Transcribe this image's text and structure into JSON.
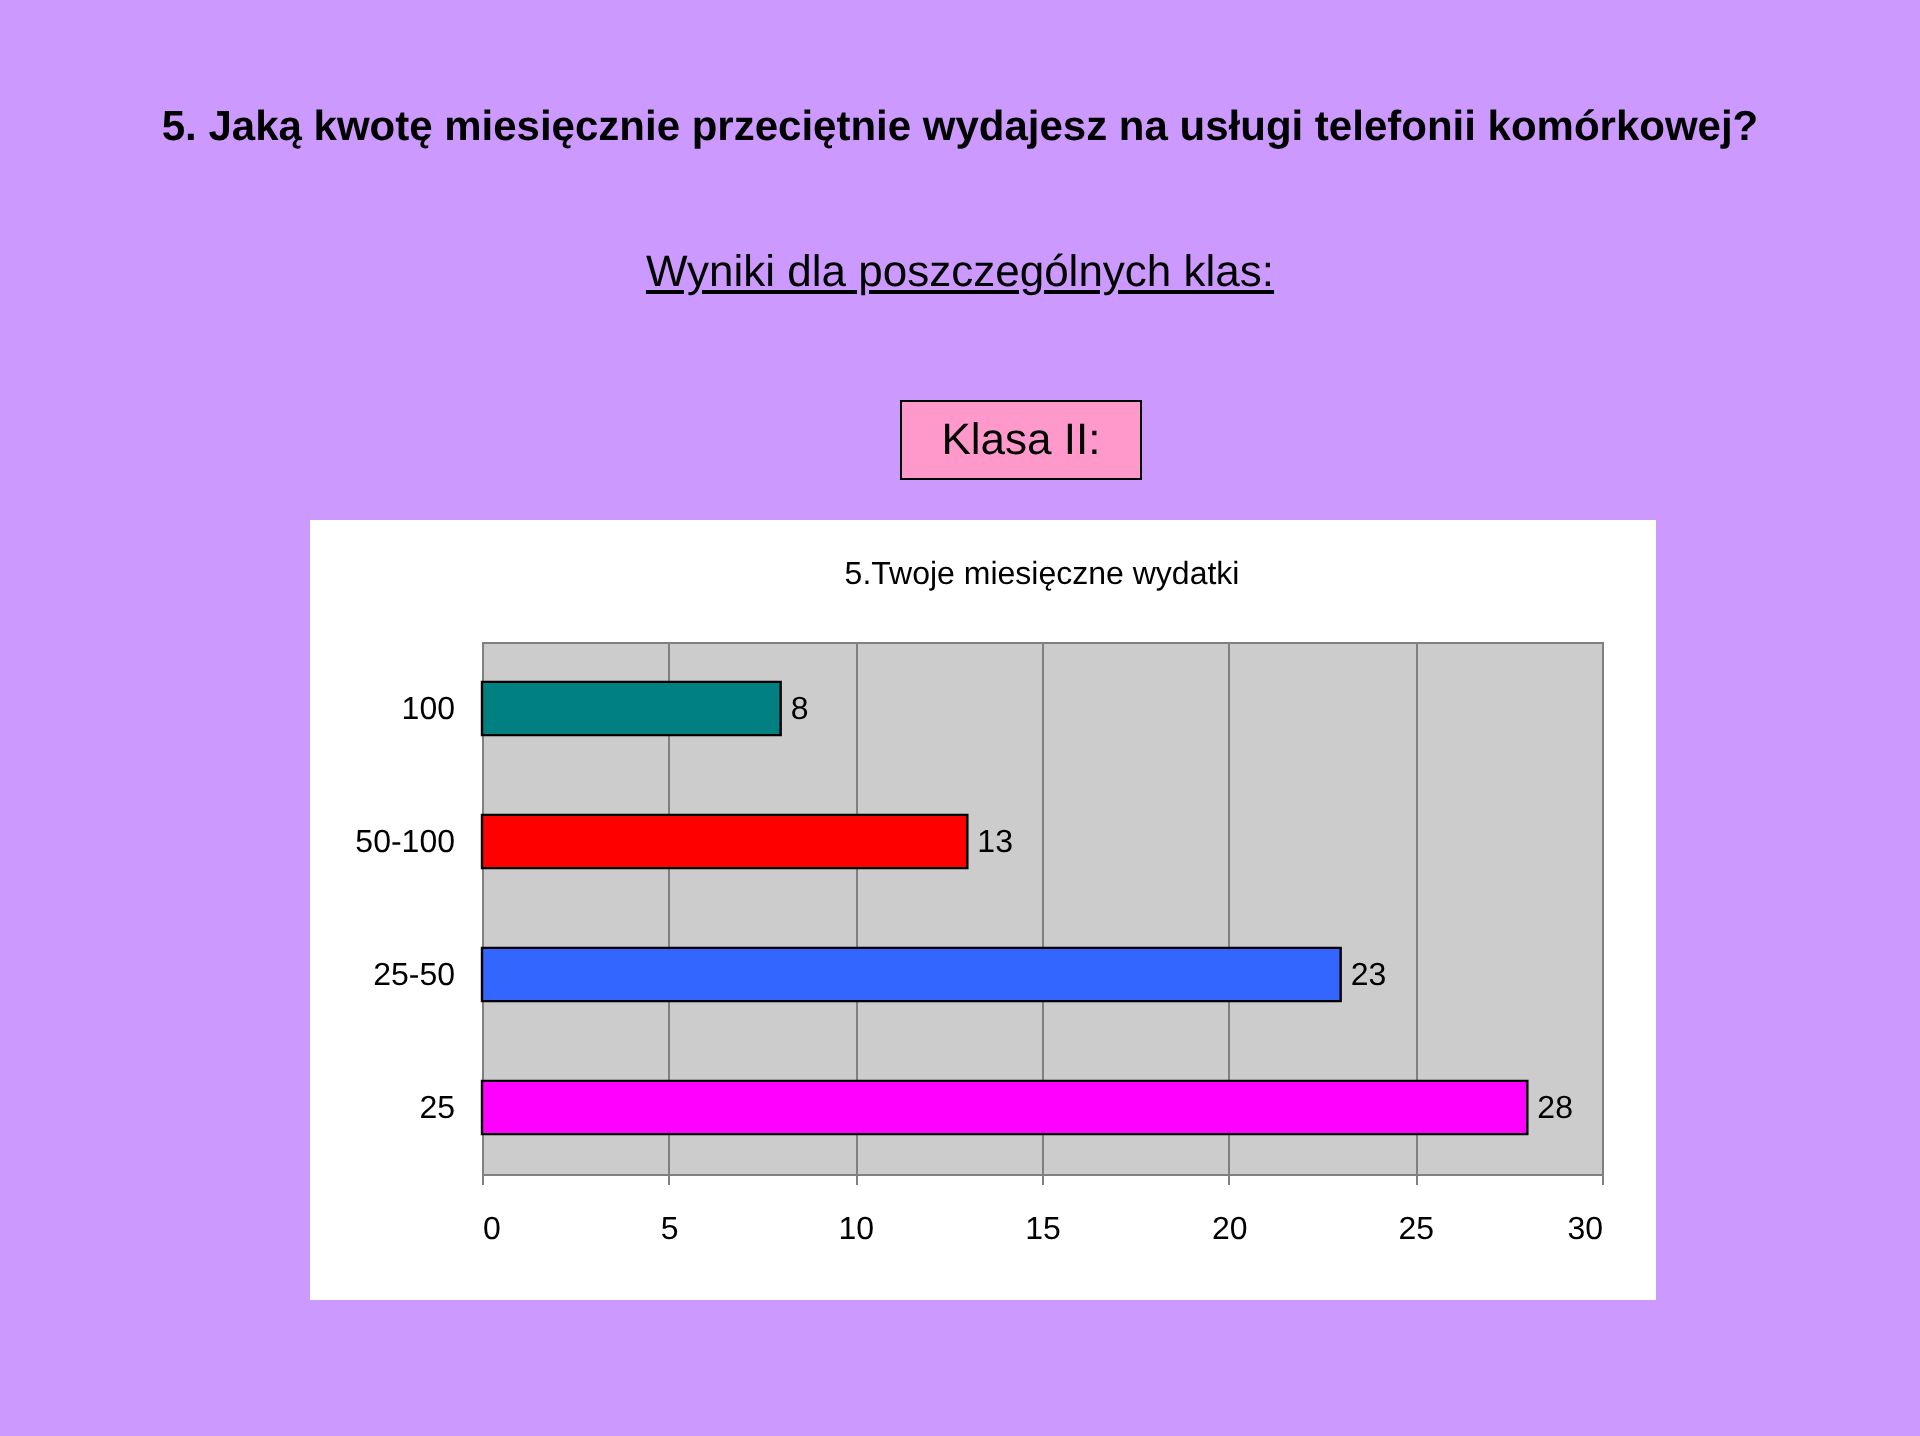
{
  "chart_data": {
    "type": "bar",
    "orientation": "horizontal",
    "title": "5. Jaką kwotę miesięcznie przeciętnie wydajesz na usługi telefonii komórkowej?",
    "subtitle": "Wyniki dla poszczególnych klas:",
    "annotations": [
      "Klasa II:",
      "5.Twoje miesięczne wydatki"
    ],
    "categories": [
      "100",
      "50-100",
      "25-50",
      "25"
    ],
    "values": [
      8,
      13,
      23,
      28
    ],
    "colors": [
      "#008080",
      "#ff0000",
      "#3366ff",
      "#ff00ff"
    ],
    "xlim": [
      0,
      30
    ],
    "xticks": [
      0,
      5,
      10,
      15,
      20,
      25,
      30
    ],
    "grid": "x",
    "data_labels": true,
    "legend": false
  }
}
